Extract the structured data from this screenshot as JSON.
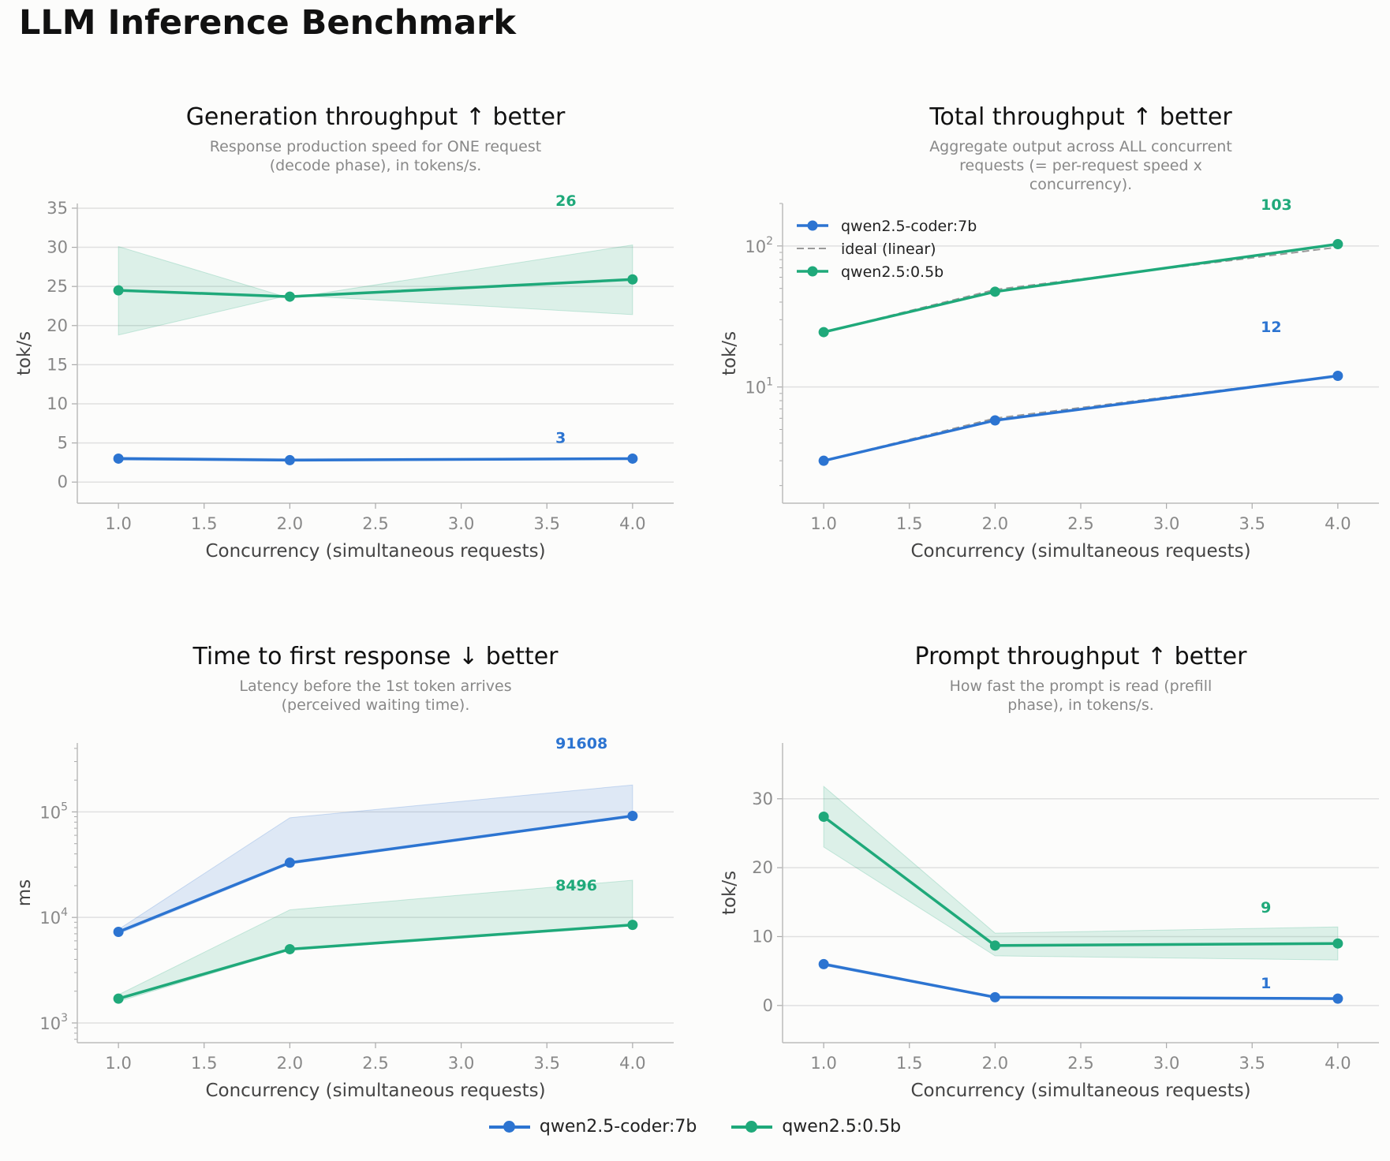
{
  "page": {
    "title": "LLM Inference Benchmark"
  },
  "colors": {
    "coder": "#2c74d1",
    "small": "#1fa97a",
    "ideal": "#999999"
  },
  "legend": {
    "items": [
      {
        "label": "qwen2.5-coder:7b",
        "color": "#2c74d1"
      },
      {
        "label": "qwen2.5:0.5b",
        "color": "#1fa97a"
      }
    ]
  },
  "chart_data": [
    {
      "id": "generation",
      "type": "line",
      "title": "Generation throughput   ↑ better",
      "subtitle": [
        "Response production speed for ONE request",
        "(decode phase), in tokens/s."
      ],
      "xlabel": "Concurrency (simultaneous requests)",
      "ylabel": "tok/s",
      "yscale": "linear",
      "xlim": [
        0.76,
        4.24
      ],
      "ylim": [
        -2.7,
        35.6
      ],
      "xticks": [
        "1.0",
        "1.5",
        "2.0",
        "2.5",
        "3.0",
        "3.5",
        "4.0"
      ],
      "yticks": [
        "0",
        "5",
        "10",
        "15",
        "20",
        "25",
        "30",
        "35"
      ],
      "grid": true,
      "series": [
        {
          "name": "qwen2.5-coder:7b",
          "color": "#2c74d1",
          "x": [
            1,
            2,
            4
          ],
          "y": [
            3.0,
            2.8,
            3.0
          ],
          "band_low": [
            2.8,
            2.7,
            2.9
          ],
          "band_high": [
            3.2,
            3.0,
            3.1
          ],
          "end_label": "3",
          "end_label_pos": [
            3.55,
            5.0
          ]
        },
        {
          "name": "qwen2.5:0.5b",
          "color": "#1fa97a",
          "x": [
            1,
            2,
            4
          ],
          "y": [
            24.5,
            23.7,
            25.9
          ],
          "band_low": [
            18.8,
            23.9,
            21.4
          ],
          "band_high": [
            30.1,
            23.5,
            30.3
          ],
          "end_label": "26",
          "end_label_pos": [
            3.55,
            35.3
          ]
        }
      ]
    },
    {
      "id": "total",
      "type": "line",
      "title": "Total throughput   ↑ better",
      "subtitle": [
        "Aggregate output across ALL concurrent",
        "requests (= per-request speed x",
        "concurrency)."
      ],
      "xlabel": "Concurrency (simultaneous requests)",
      "ylabel": "tok/s",
      "yscale": "log",
      "xlim": [
        0.76,
        4.24
      ],
      "ylim": [
        1.5,
        200
      ],
      "xticks": [
        "1.0",
        "1.5",
        "2.0",
        "2.5",
        "3.0",
        "3.5",
        "4.0"
      ],
      "yticks": [
        {
          "v": 10,
          "b": "10",
          "e": "1"
        },
        {
          "v": 100,
          "b": "10",
          "e": "2"
        }
      ],
      "grid": true,
      "legend": {
        "position": "top-left",
        "items": [
          "qwen2.5-coder:7b",
          "ideal (linear)",
          "qwen2.5:0.5b"
        ]
      },
      "ideal_label": "ideal (linear)",
      "series": [
        {
          "name": "qwen2.5-coder:7b",
          "color": "#2c74d1",
          "x": [
            1,
            2,
            4
          ],
          "y": [
            3.0,
            5.8,
            12.0
          ],
          "ideal": [
            3.0,
            6.0,
            12.0
          ],
          "end_label": "12",
          "end_label_pos": [
            3.55,
            24.5
          ]
        },
        {
          "name": "qwen2.5:0.5b",
          "color": "#1fa97a",
          "x": [
            1,
            2,
            4
          ],
          "y": [
            24.5,
            47.4,
            103.0
          ],
          "ideal": [
            24.5,
            49.0,
            98.0
          ],
          "end_label": "103",
          "end_label_pos": [
            3.55,
            180
          ]
        }
      ]
    },
    {
      "id": "ttft",
      "type": "line",
      "title": "Time to first response   ↓ better",
      "subtitle": [
        "Latency before the 1st token arrives",
        "(perceived waiting time)."
      ],
      "xlabel": "Concurrency (simultaneous requests)",
      "ylabel": "ms",
      "yscale": "log",
      "xlim": [
        0.76,
        4.24
      ],
      "ylim": [
        650,
        450000
      ],
      "xticks": [
        "1.0",
        "1.5",
        "2.0",
        "2.5",
        "3.0",
        "3.5",
        "4.0"
      ],
      "yticks": [
        {
          "v": 1000,
          "b": "10",
          "e": "3"
        },
        {
          "v": 10000,
          "b": "10",
          "e": "4"
        },
        {
          "v": 100000,
          "b": "10",
          "e": "5"
        }
      ],
      "grid": true,
      "series": [
        {
          "name": "qwen2.5-coder:7b",
          "color": "#2c74d1",
          "x": [
            1,
            2,
            4
          ],
          "y": [
            7300,
            33000,
            91608
          ],
          "band_low": [
            7000,
            32000,
            90000
          ],
          "band_high": [
            7700,
            88000,
            180000
          ],
          "end_label": "91608",
          "end_label_pos": [
            3.55,
            400000
          ]
        },
        {
          "name": "qwen2.5:0.5b",
          "color": "#1fa97a",
          "x": [
            1,
            2,
            4
          ],
          "y": [
            1700,
            5000,
            8496
          ],
          "band_low": [
            1600,
            4900,
            8300
          ],
          "band_high": [
            1850,
            11800,
            22500
          ],
          "end_label": "8496",
          "end_label_pos": [
            3.55,
            18000
          ]
        }
      ]
    },
    {
      "id": "prompt",
      "type": "line",
      "title": "Prompt throughput   ↑ better",
      "subtitle": [
        "How fast the prompt is read (prefill",
        "phase), in tokens/s."
      ],
      "xlabel": "Concurrency (simultaneous requests)",
      "ylabel": "tok/s",
      "yscale": "linear",
      "xlim": [
        0.76,
        4.24
      ],
      "ylim": [
        -5.4,
        38.1
      ],
      "xticks": [
        "1.0",
        "1.5",
        "2.0",
        "2.5",
        "3.0",
        "3.5",
        "4.0"
      ],
      "yticks": [
        "0",
        "10",
        "20",
        "30"
      ],
      "grid": true,
      "series": [
        {
          "name": "qwen2.5-coder:7b",
          "color": "#2c74d1",
          "x": [
            1,
            2,
            4
          ],
          "y": [
            6.0,
            1.2,
            1.0
          ],
          "band_low": [
            5.8,
            1.1,
            0.9
          ],
          "band_high": [
            6.2,
            1.3,
            1.1
          ],
          "end_label": "1",
          "end_label_pos": [
            3.55,
            2.5
          ]
        },
        {
          "name": "qwen2.5:0.5b",
          "color": "#1fa97a",
          "x": [
            1,
            2,
            4
          ],
          "y": [
            27.4,
            8.7,
            9.0
          ],
          "band_low": [
            23.0,
            7.2,
            6.6
          ],
          "band_high": [
            31.8,
            10.5,
            11.4
          ],
          "end_label": "9",
          "end_label_pos": [
            3.55,
            13.5
          ]
        }
      ]
    }
  ]
}
